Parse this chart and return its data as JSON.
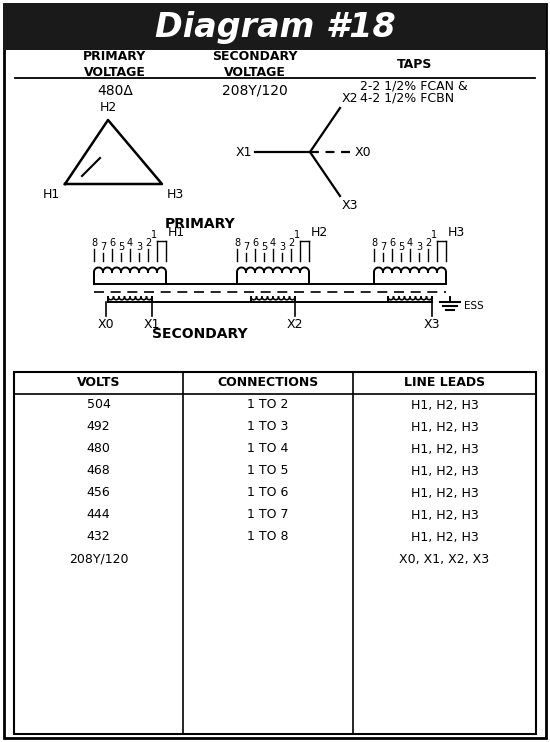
{
  "title": "Diagram #18",
  "title_fontsize": 24,
  "title_bg": "#1a1a1a",
  "title_color": "#ffffff",
  "primary_voltage": "480Δ",
  "secondary_voltage": "208Y/120",
  "taps_line1": "2-2 1/2% FCAN &",
  "taps_line2": "4-2 1/2% FCBN",
  "table_headers": [
    "VOLTS",
    "CONNECTIONS",
    "LINE LEADS"
  ],
  "table_rows": [
    [
      "504",
      "1 TO 2",
      "H1, H2, H3"
    ],
    [
      "492",
      "1 TO 3",
      "H1, H2, H3"
    ],
    [
      "480",
      "1 TO 4",
      "H1, H2, H3"
    ],
    [
      "468",
      "1 TO 5",
      "H1, H2, H3"
    ],
    [
      "456",
      "1 TO 6",
      "H1, H2, H3"
    ],
    [
      "444",
      "1 TO 7",
      "H1, H2, H3"
    ],
    [
      "432",
      "1 TO 8",
      "H1, H2, H3"
    ],
    [
      "208Y/120",
      "",
      "X0, X1, X2, X3"
    ]
  ]
}
